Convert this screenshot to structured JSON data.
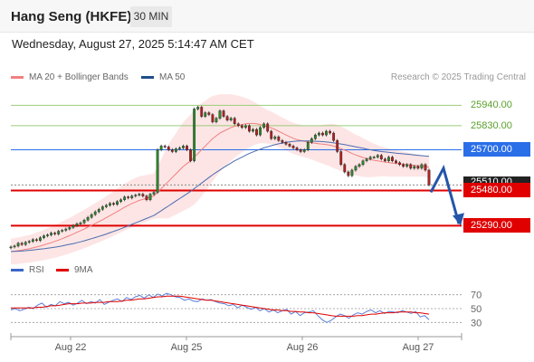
{
  "header": {
    "title": "Hang Seng (HKFE)",
    "interval": "30 MIN",
    "datetime": "Wednesday, August 27, 2025 5:14:47 AM CET"
  },
  "legend": {
    "ma20": {
      "label": "MA 20 + Bollinger Bands",
      "color": "#f08080"
    },
    "ma50": {
      "label": "MA 50",
      "color": "#1f4e8c"
    },
    "credit": "Research © 2025 Trading Central"
  },
  "rsi_legend": {
    "rsi": {
      "label": "RSI",
      "color": "#3a66c8"
    },
    "ma9": {
      "label": "9MA",
      "color": "#e00000"
    }
  },
  "levels": [
    {
      "value": "25940.00",
      "kind": "resistance-light",
      "color": "#5aa02c"
    },
    {
      "value": "25830.00",
      "kind": "resistance-light",
      "color": "#5aa02c"
    },
    {
      "value": "25700.00",
      "kind": "pivot",
      "color": "#2a6ee8"
    },
    {
      "value": "25510.00",
      "kind": "last-price",
      "color": "#222222"
    },
    {
      "value": "25480.00",
      "kind": "support",
      "color": "#e00000"
    },
    {
      "value": "25290.00",
      "kind": "support",
      "color": "#e00000"
    }
  ],
  "chart_data": [
    {
      "type": "line",
      "chart": "price-candlestick",
      "x_labels": [
        "Aug 22",
        "Aug 25",
        "Aug 26",
        "Aug 27"
      ],
      "ylim": [
        25150,
        26020
      ],
      "close": [
        25175,
        25180,
        25195,
        25188,
        25200,
        25205,
        25215,
        25210,
        25225,
        25235,
        25240,
        25250,
        25245,
        25260,
        25265,
        25272,
        25280,
        25290,
        25300,
        25305,
        25320,
        25335,
        25350,
        25365,
        25378,
        25392,
        25400,
        25410,
        25405,
        25420,
        25430,
        25445,
        25440,
        25450,
        25455,
        25460,
        25450,
        25430,
        25460,
        25470,
        25700,
        25720,
        25715,
        25700,
        25690,
        25705,
        25710,
        25720,
        25700,
        25640,
        25920,
        25930,
        25880,
        25900,
        25890,
        25850,
        25870,
        25910,
        25880,
        25860,
        25870,
        25840,
        25830,
        25820,
        25830,
        25800,
        25810,
        25780,
        25820,
        25840,
        25800,
        25760,
        25770,
        25750,
        25740,
        25730,
        25720,
        25710,
        25700,
        25690,
        25700,
        25740,
        25760,
        25780,
        25790,
        25780,
        25800,
        25790,
        25750,
        25690,
        25620,
        25580,
        25560,
        25590,
        25610,
        25620,
        25640,
        25650,
        25660,
        25660,
        25670,
        25650,
        25640,
        25660,
        25640,
        25630,
        25620,
        25610,
        25620,
        25600,
        25610,
        25600,
        25620,
        25590,
        25510
      ],
      "ma20": [
        25150,
        25152,
        25155,
        25158,
        25162,
        25165,
        25170,
        25175,
        25180,
        25186,
        25192,
        25198,
        25205,
        25212,
        25220,
        25228,
        25236,
        25245,
        25254,
        25263,
        25272,
        25282,
        25292,
        25302,
        25312,
        25322,
        25333,
        25344,
        25355,
        25366,
        25378,
        25390,
        25400,
        25410,
        25418,
        25426,
        25432,
        25438,
        25444,
        25450,
        25470,
        25490,
        25510,
        25530,
        25550,
        25570,
        25590,
        25610,
        25625,
        25640,
        25660,
        25680,
        25700,
        25720,
        25740,
        25760,
        25775,
        25790,
        25800,
        25810,
        25820,
        25826,
        25832,
        25836,
        25840,
        25842,
        25842,
        25840,
        25836,
        25830,
        25824,
        25818,
        25810,
        25800,
        25790,
        25780,
        25770,
        25762,
        25755,
        25750,
        25746,
        25742,
        25738,
        25735,
        25732,
        25730,
        25728,
        25725,
        25720,
        25714,
        25706,
        25698,
        25690,
        25680,
        25672,
        25665,
        25658,
        25652,
        25647,
        25643,
        25640,
        25637,
        25634,
        25631,
        25628,
        25626,
        25624,
        25622,
        25620,
        25618,
        25616,
        25614,
        25612,
        25610,
        25605
      ],
      "ma50": [
        25150,
        25151,
        25152,
        25153,
        25155,
        25157,
        25159,
        25161,
        25163,
        25165,
        25168,
        25171,
        25174,
        25177,
        25181,
        25185,
        25189,
        25193,
        25198,
        25203,
        25208,
        25214,
        25220,
        25226,
        25232,
        25238,
        25245,
        25252,
        25259,
        25266,
        25273,
        25281,
        25289,
        25297,
        25305,
        25313,
        25321,
        25329,
        25337,
        25345,
        25358,
        25371,
        25384,
        25397,
        25410,
        25423,
        25436,
        25449,
        25462,
        25475,
        25490,
        25505,
        25520,
        25535,
        25550,
        25565,
        25578,
        25591,
        25604,
        25616,
        25628,
        25640,
        25650,
        25660,
        25670,
        25680,
        25688,
        25696,
        25703,
        25710,
        25716,
        25722,
        25727,
        25732,
        25736,
        25740,
        25743,
        25745,
        25747,
        25748,
        25748,
        25748,
        25747,
        25746,
        25745,
        25744,
        25742,
        25740,
        25737,
        25734,
        25731,
        25728,
        25724,
        25720,
        25716,
        25712,
        25708,
        25704,
        25700,
        25696,
        25693,
        25690,
        25688,
        25686,
        25684,
        25682,
        25680,
        25678,
        25676,
        25674,
        25672,
        25670,
        25668,
        25666,
        25664
      ],
      "bb_width": [
        70,
        70,
        72,
        72,
        74,
        75,
        76,
        78,
        80,
        82,
        84,
        86,
        88,
        90,
        92,
        94,
        96,
        98,
        100,
        102,
        104,
        106,
        108,
        110,
        112,
        114,
        116,
        118,
        120,
        122,
        124,
        126,
        128,
        130,
        130,
        130,
        128,
        126,
        124,
        122,
        140,
        160,
        180,
        200,
        210,
        220,
        230,
        240,
        245,
        250,
        255,
        255,
        250,
        245,
        240,
        230,
        220,
        210,
        200,
        190,
        180,
        170,
        160,
        150,
        140,
        130,
        120,
        110,
        100,
        95,
        90,
        88,
        86,
        85,
        84,
        84,
        84,
        84,
        84,
        85,
        86,
        88,
        90,
        95,
        100,
        105,
        110,
        115,
        120,
        120,
        120,
        118,
        115,
        112,
        110,
        108,
        105,
        100,
        95,
        90,
        85,
        80,
        78,
        76,
        74,
        72,
        70,
        68,
        66,
        64,
        62,
        60,
        58,
        56,
        60
      ]
    },
    {
      "type": "line",
      "chart": "rsi",
      "ylim": [
        20,
        80
      ],
      "yticks": [
        70,
        50,
        30
      ],
      "series": [
        {
          "name": "RSI",
          "values": [
            48,
            50,
            47,
            49,
            52,
            50,
            55,
            58,
            52,
            56,
            54,
            60,
            57,
            59,
            55,
            58,
            62,
            57,
            60,
            58,
            63,
            56,
            59,
            62,
            64,
            60,
            66,
            63,
            67,
            69,
            65,
            70,
            66,
            71,
            68,
            72,
            70,
            67,
            66,
            62,
            64,
            61,
            60,
            64,
            62,
            63,
            60,
            58,
            57,
            54,
            56,
            51,
            55,
            52,
            49,
            52,
            47,
            50,
            45,
            48,
            44,
            47,
            49,
            42,
            46,
            40,
            44,
            45,
            47,
            40,
            34,
            30,
            33,
            38,
            42,
            40,
            36,
            41,
            44,
            42,
            46,
            48,
            44,
            47,
            43,
            46,
            45,
            44,
            47,
            45,
            43,
            46,
            38,
            40,
            34
          ]
        },
        {
          "name": "9MA",
          "values": [
            51,
            51,
            51,
            51,
            51,
            51,
            52,
            52,
            53,
            54,
            54,
            55,
            56,
            57,
            57,
            57,
            58,
            58,
            58,
            59,
            59,
            59,
            60,
            60,
            60,
            61,
            62,
            62,
            63,
            64,
            64,
            65,
            66,
            67,
            67,
            68,
            68,
            68,
            68,
            67,
            66,
            65,
            64,
            63,
            62,
            62,
            61,
            60,
            59,
            58,
            57,
            56,
            55,
            54,
            53,
            52,
            51,
            50,
            49,
            48,
            48,
            47,
            47,
            46,
            46,
            45,
            45,
            44,
            44,
            43,
            42,
            41,
            40,
            39,
            39,
            39,
            39,
            39,
            40,
            40,
            41,
            42,
            42,
            43,
            44,
            44,
            44,
            45,
            45,
            45,
            45,
            44,
            44,
            43,
            42
          ]
        }
      ]
    }
  ]
}
